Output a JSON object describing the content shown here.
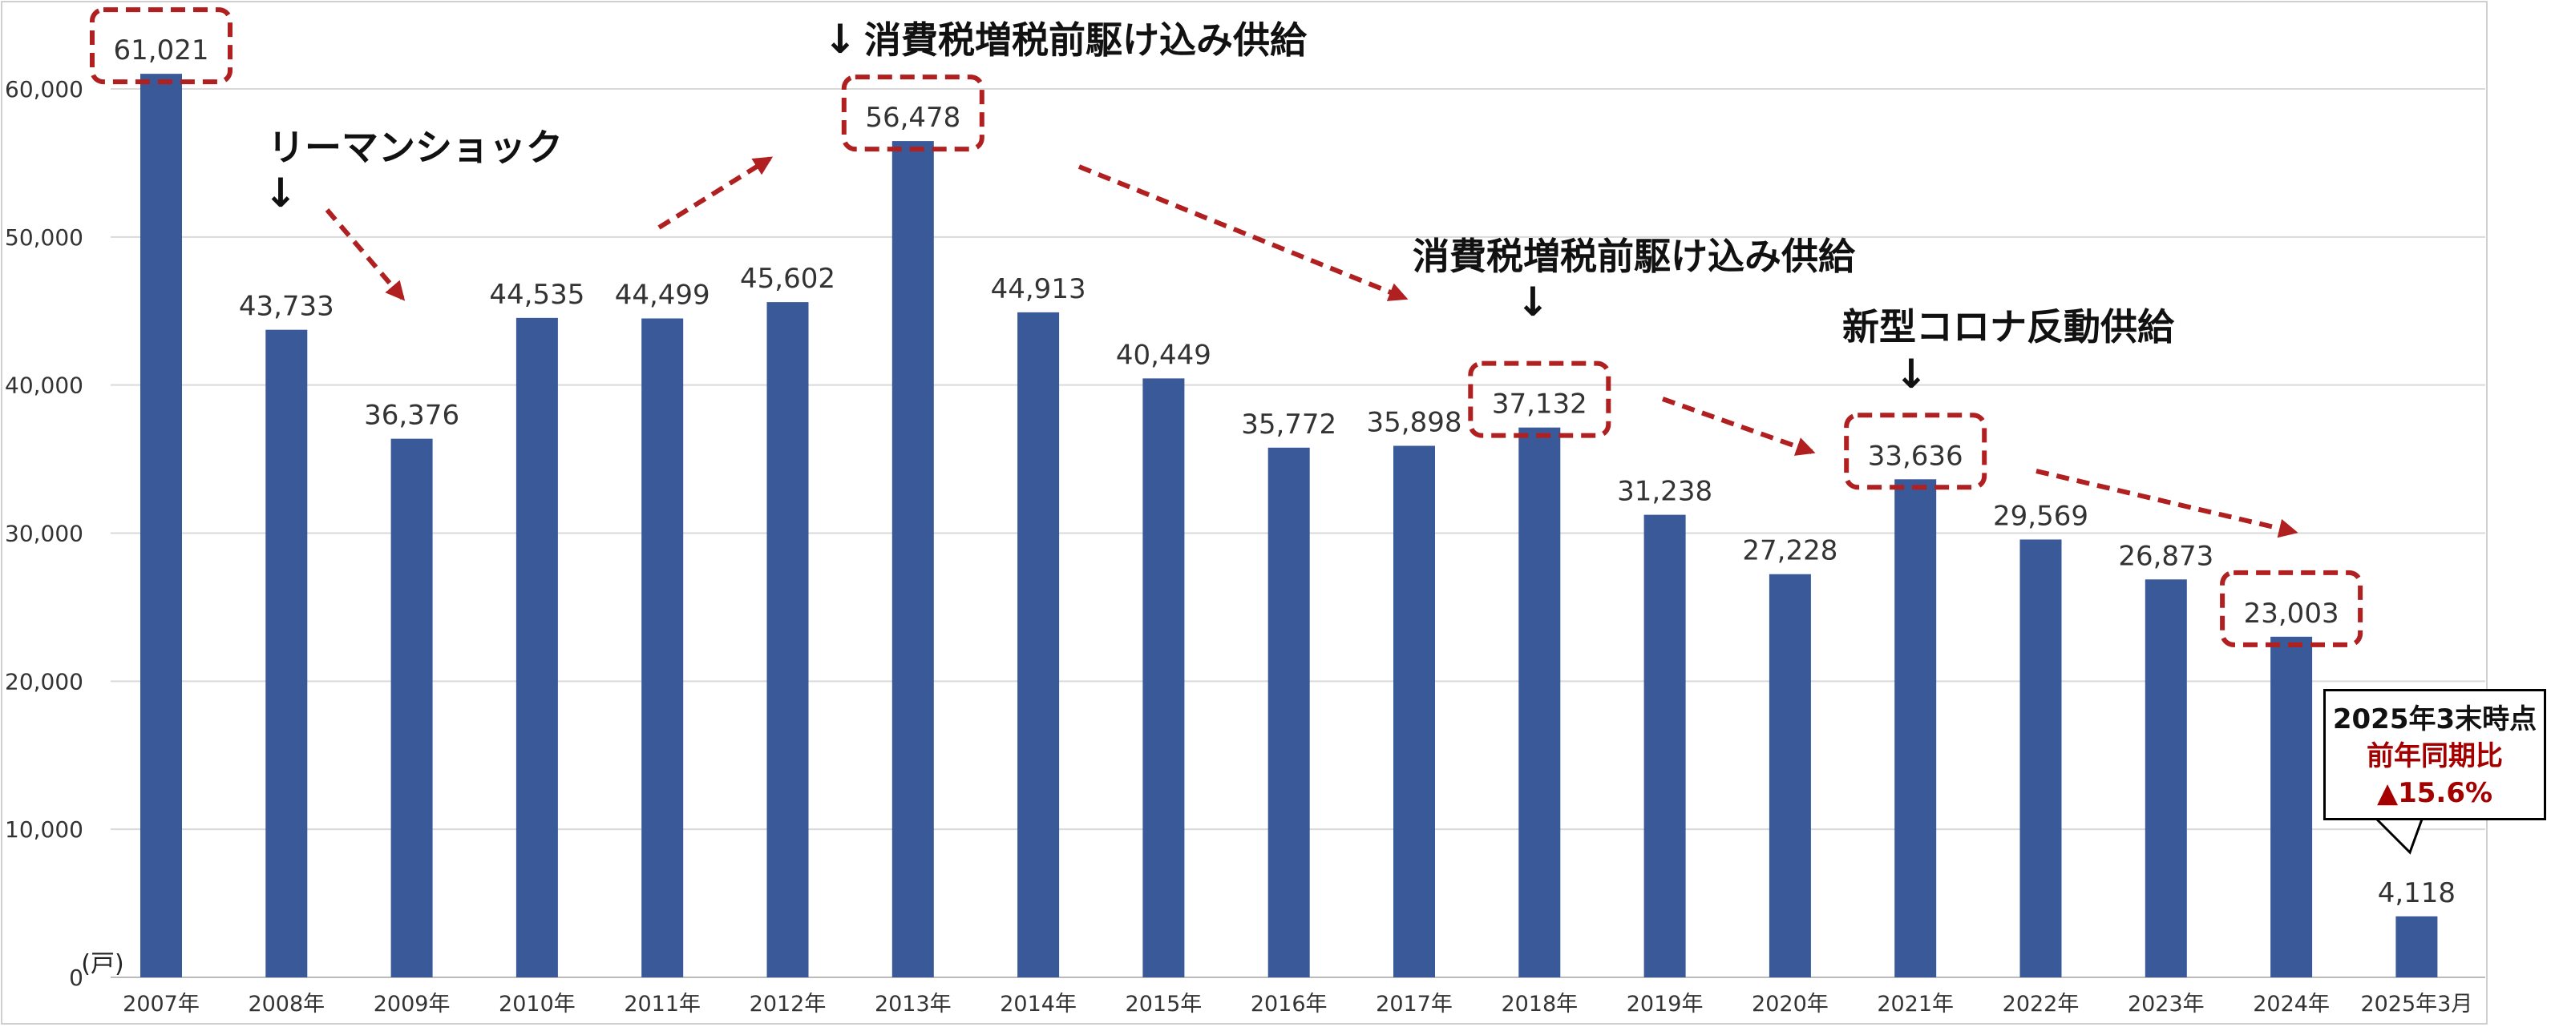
{
  "chart_data": {
    "type": "bar",
    "categories": [
      "2007年",
      "2008年",
      "2009年",
      "2010年",
      "2011年",
      "2012年",
      "2013年",
      "2014年",
      "2015年",
      "2016年",
      "2017年",
      "2018年",
      "2019年",
      "2020年",
      "2021年",
      "2022年",
      "2023年",
      "2024年",
      "2025年3月"
    ],
    "values": [
      61021,
      43733,
      36376,
      44535,
      44499,
      45602,
      56478,
      44913,
      40449,
      35772,
      35898,
      37132,
      31238,
      27228,
      33636,
      29569,
      26873,
      23003,
      4118
    ],
    "value_labels": [
      "61,021",
      "43,733",
      "36,376",
      "44,535",
      "44,499",
      "45,602",
      "56,478",
      "44,913",
      "40,449",
      "35,772",
      "35,898",
      "37,132",
      "31,238",
      "27,228",
      "33,636",
      "29,569",
      "26,873",
      "23,003",
      "4,118"
    ],
    "highlighted": [
      "2007年",
      "2013年",
      "2018年",
      "2021年",
      "2024年"
    ],
    "ylim": [
      0,
      65000
    ],
    "y_ticks": [
      0,
      10000,
      20000,
      30000,
      40000,
      50000,
      60000
    ],
    "y_tick_labels": [
      "0",
      "10,000",
      "20,000",
      "30,000",
      "40,000",
      "50,000",
      "60,000"
    ],
    "y_unit": "(戸)",
    "grid": true,
    "bar_color": "#3a5998",
    "highlight_color": "#b02020",
    "annotations": [
      {
        "text": "リーマンショック",
        "arrow": "↓"
      },
      {
        "text": "消費税増税前駆け込み供給",
        "arrow": "↓"
      },
      {
        "text": "消費税増税前駆け込み供給",
        "arrow": "↓"
      },
      {
        "text": "新型コロナ反動供給",
        "arrow": "↓"
      }
    ]
  },
  "callout": {
    "line1": "2025年3末時点",
    "line2": "前年同期比",
    "line3": "▲15.6%"
  }
}
